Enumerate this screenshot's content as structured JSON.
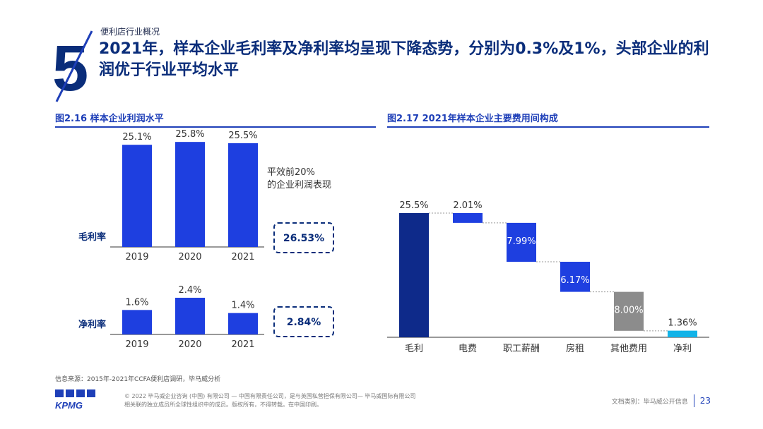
{
  "header": {
    "section_number": "5",
    "section_label": "便利店行业概况",
    "headline": "2021年，样本企业毛利率及净利率均呈现下降态势，分别为0.3%及1%，头部企业的利润优于行业平均水平"
  },
  "colors": {
    "bar_blue": "#1e3fe0",
    "dark_navy": "#0e2a8a",
    "gray": "#8c8c8c",
    "light_blue": "#12b3e8",
    "title_blue": "#1e3fb8",
    "headline_navy": "#0a2d7a"
  },
  "chart_data": [
    {
      "type": "bar",
      "title": "图2.16 样本企业利润水平",
      "categories": [
        "2019",
        "2020",
        "2021"
      ],
      "annotation": "平效前20%的企业利润表现",
      "groups": [
        {
          "name": "毛利率",
          "values": [
            25.1,
            25.8,
            25.5
          ],
          "labels": [
            "25.1%",
            "25.8%",
            "25.5%"
          ],
          "benchmark": "26.53%"
        },
        {
          "name": "净利率",
          "values": [
            1.6,
            2.4,
            1.4
          ],
          "labels": [
            "1.6%",
            "2.4%",
            "1.4%"
          ],
          "benchmark": "2.84%"
        }
      ]
    },
    {
      "type": "bar",
      "subtype": "waterfall",
      "title": "图2.17 2021年样本企业主要费用间构成",
      "categories": [
        "毛利",
        "电费",
        "职工薪酬",
        "房租",
        "其他费用",
        "净利"
      ],
      "values": [
        25.5,
        2.01,
        7.99,
        6.17,
        8.0,
        1.36
      ],
      "labels": [
        "25.5%",
        "2.01%",
        "7.99%",
        "6.17%",
        "8.00%",
        "1.36%"
      ],
      "kinds": [
        "total",
        "decrease",
        "decrease",
        "decrease",
        "decrease",
        "total"
      ],
      "ylim": [
        0,
        25.5
      ]
    }
  ],
  "footer": {
    "source": "信息来源：2015年-2021年CCFA便利店调研，毕马威分析",
    "logo_text": "KPMG",
    "copyright_line1": "© 2022 毕马威企业咨询 (中国) 有限公司 — 中国有限责任公司，是与英国私营担保有限公司— 毕马威国际有限公司",
    "copyright_line2": "相关联的独立成员所全球性组织中的成员。版权所有，不得转载。在中国印刷。",
    "doc_class": "文档类别：毕马威公开信息",
    "page_number": "23"
  }
}
